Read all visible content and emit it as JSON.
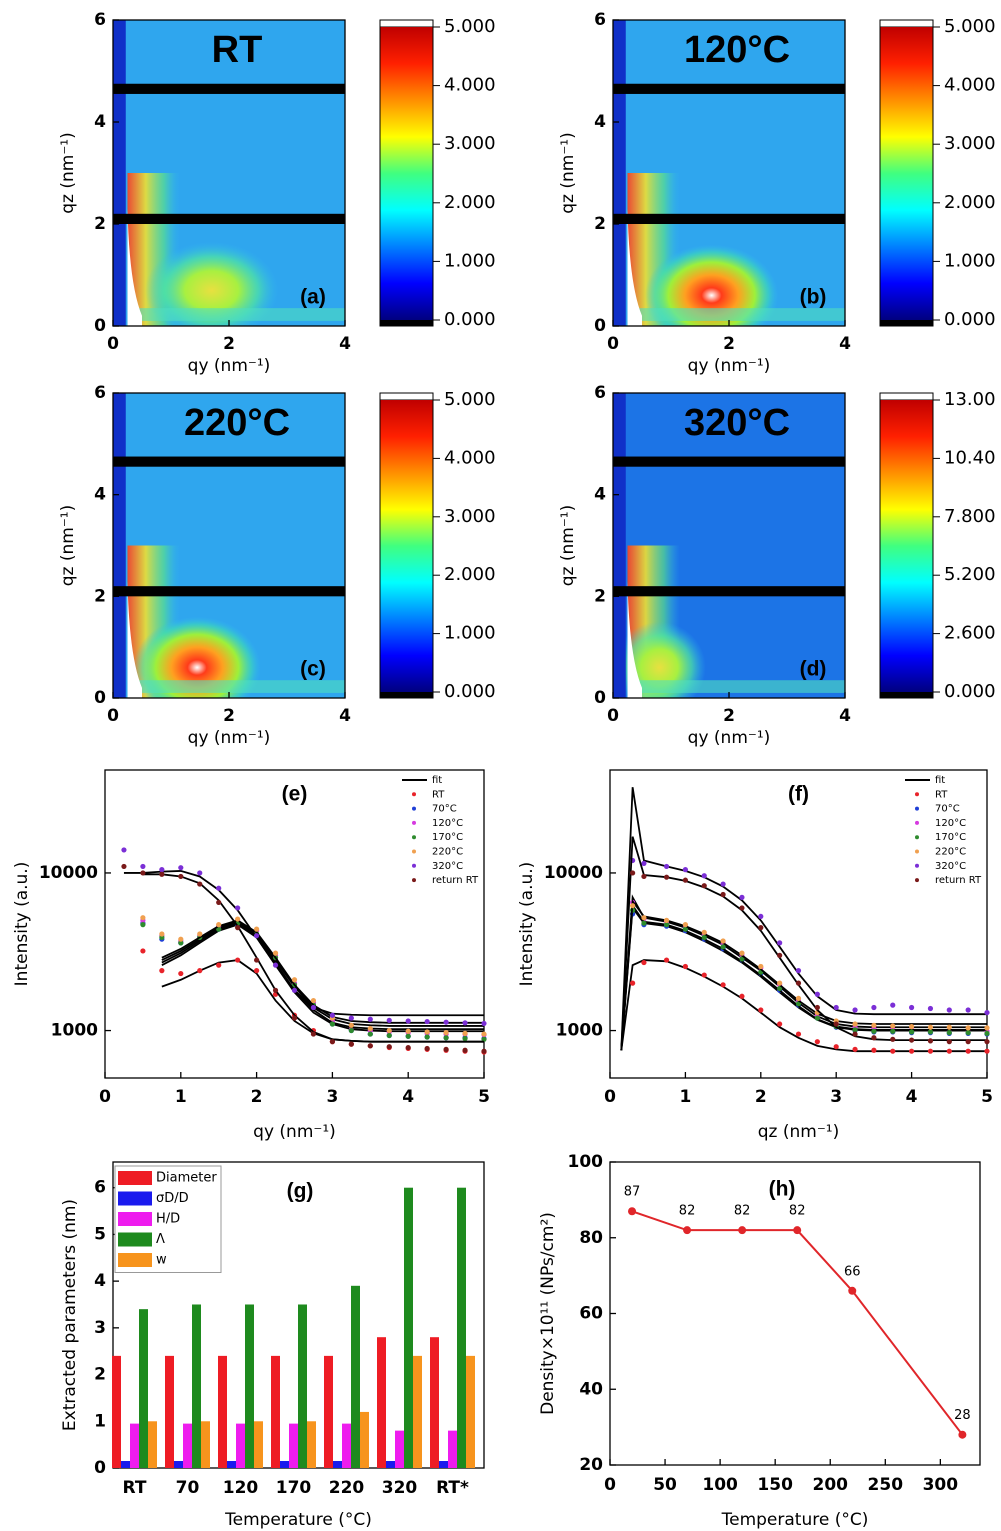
{
  "chart_data": [
    {
      "type": "heatmap",
      "title": "RT",
      "panel": "(a)",
      "x_label": "qy (nm⁻¹)",
      "y_label": "qz (nm⁻¹)",
      "xlim": [
        0,
        4
      ],
      "xticks": [
        0,
        2,
        4
      ],
      "ylim": [
        0,
        6
      ],
      "yticks": [
        0,
        2,
        4,
        6
      ],
      "clim": [
        0,
        5
      ],
      "cticks": [
        {
          "value": 0,
          "label": "0.000"
        },
        {
          "value": 1,
          "label": "1.000"
        },
        {
          "value": 2,
          "label": "2.000"
        },
        {
          "value": 3,
          "label": "3.000"
        },
        {
          "value": 4,
          "label": "4.000"
        },
        {
          "value": 5,
          "label": "5.000"
        }
      ]
    },
    {
      "type": "heatmap",
      "title": "120°C",
      "panel": "(b)",
      "x_label": "qy (nm⁻¹)",
      "y_label": "qz (nm⁻¹)",
      "xlim": [
        0,
        4
      ],
      "xticks": [
        0,
        2,
        4
      ],
      "ylim": [
        0,
        6
      ],
      "yticks": [
        0,
        2,
        4,
        6
      ],
      "clim": [
        0,
        5
      ],
      "cticks": [
        {
          "value": 0,
          "label": "0.000"
        },
        {
          "value": 1,
          "label": "1.000"
        },
        {
          "value": 2,
          "label": "2.000"
        },
        {
          "value": 3,
          "label": "3.000"
        },
        {
          "value": 4,
          "label": "4.000"
        },
        {
          "value": 5,
          "label": "5.000"
        }
      ]
    },
    {
      "type": "heatmap",
      "title": "220°C",
      "panel": "(c)",
      "x_label": "qy (nm⁻¹)",
      "y_label": "qz (nm⁻¹)",
      "xlim": [
        0,
        4
      ],
      "xticks": [
        0,
        2,
        4
      ],
      "ylim": [
        0,
        6
      ],
      "yticks": [
        0,
        2,
        4,
        6
      ],
      "clim": [
        0,
        5
      ],
      "cticks": [
        {
          "value": 0,
          "label": "0.000"
        },
        {
          "value": 1,
          "label": "1.000"
        },
        {
          "value": 2,
          "label": "2.000"
        },
        {
          "value": 3,
          "label": "3.000"
        },
        {
          "value": 4,
          "label": "4.000"
        },
        {
          "value": 5,
          "label": "5.000"
        }
      ]
    },
    {
      "type": "heatmap",
      "title": "320°C",
      "panel": "(d)",
      "x_label": "qy (nm⁻¹)",
      "y_label": "qz (nm⁻¹)",
      "xlim": [
        0,
        4
      ],
      "xticks": [
        0,
        2,
        4
      ],
      "ylim": [
        0,
        6
      ],
      "yticks": [
        0,
        2,
        4,
        6
      ],
      "clim": [
        0,
        13
      ],
      "cticks": [
        {
          "value": 0,
          "label": "0.000"
        },
        {
          "value": 2.6,
          "label": "2.600"
        },
        {
          "value": 5.2,
          "label": "5.200"
        },
        {
          "value": 7.8,
          "label": "7.800"
        },
        {
          "value": 10.4,
          "label": "10.40"
        },
        {
          "value": 13,
          "label": "13.00"
        }
      ]
    },
    {
      "type": "scatter",
      "panel": "(e)",
      "x_label": "qy (nm⁻¹)",
      "y_label": "Intensity (a.u.)",
      "log_y": true,
      "legend": "upper right",
      "xlim": [
        0,
        5
      ],
      "xticks": [
        0,
        1,
        2,
        3,
        4,
        5
      ],
      "ylim": [
        500,
        45000
      ],
      "yticks": [
        1000,
        10000
      ],
      "fit_name": "fit",
      "fit_color": "#000000",
      "x": [
        0.25,
        0.5,
        0.75,
        1,
        1.25,
        1.5,
        1.75,
        2,
        2.25,
        2.5,
        2.75,
        3,
        3.25,
        3.5,
        3.75,
        4,
        4.25,
        4.5,
        4.75,
        5
      ],
      "series": [
        {
          "name": "RT",
          "color": "#e8232a",
          "values": [
            null,
            3200,
            2400,
            2300,
            2400,
            2600,
            2800,
            2400,
            1700,
            1250,
            1000,
            850,
            820,
            800,
            780,
            770,
            760,
            750,
            740,
            730
          ],
          "fit": [
            null,
            null,
            1900,
            2100,
            2400,
            2700,
            2800,
            2300,
            1550,
            1150,
            960,
            880,
            860,
            850,
            850,
            850,
            850,
            850,
            850,
            850
          ]
        },
        {
          "name": "70°C",
          "color": "#1f3fd6",
          "values": [
            null,
            4800,
            3800,
            3600,
            3900,
            4400,
            4700,
            4000,
            2800,
            1900,
            1400,
            1100,
            1000,
            950,
            930,
            920,
            910,
            900,
            900,
            890
          ],
          "fit": [
            null,
            null,
            2600,
            3000,
            3600,
            4300,
            4700,
            3900,
            2600,
            1750,
            1300,
            1100,
            1020,
            1000,
            990,
            990,
            990,
            990,
            990,
            990
          ]
        },
        {
          "name": "120°C",
          "color": "#d63ae0",
          "values": [
            null,
            5000,
            4000,
            3700,
            4000,
            4600,
            5000,
            4300,
            3000,
            2000,
            1500,
            1150,
            1050,
            1000,
            980,
            970,
            960,
            950,
            950,
            940
          ],
          "fit": [
            null,
            null,
            2800,
            3200,
            3800,
            4500,
            4900,
            4100,
            2800,
            1900,
            1400,
            1180,
            1100,
            1080,
            1070,
            1070,
            1070,
            1070,
            1070,
            1070
          ]
        },
        {
          "name": "170°C",
          "color": "#2e8b2e",
          "values": [
            null,
            4700,
            3900,
            3600,
            3900,
            4400,
            4800,
            4100,
            2900,
            1950,
            1450,
            1100,
            1000,
            950,
            930,
            920,
            910,
            900,
            890,
            880
          ],
          "fit": [
            null,
            null,
            2700,
            3100,
            3700,
            4400,
            4800,
            4000,
            2700,
            1800,
            1350,
            1120,
            1050,
            1030,
            1020,
            1020,
            1020,
            1020,
            1020,
            1020
          ]
        },
        {
          "name": "220°C",
          "color": "#f0a050",
          "values": [
            null,
            5200,
            4100,
            3800,
            4100,
            4700,
            5100,
            4400,
            3100,
            2100,
            1550,
            1200,
            1080,
            1030,
            1000,
            990,
            980,
            970,
            960,
            950
          ],
          "fit": [
            null,
            null,
            2900,
            3300,
            3900,
            4600,
            5000,
            4200,
            2900,
            1950,
            1450,
            1220,
            1150,
            1130,
            1120,
            1120,
            1120,
            1120,
            1120,
            1120
          ]
        },
        {
          "name": "320°C",
          "color": "#7b2fd6",
          "values": [
            14000,
            11000,
            10500,
            10800,
            10000,
            8000,
            6000,
            4000,
            2600,
            1800,
            1400,
            1250,
            1200,
            1180,
            1160,
            1150,
            1140,
            1130,
            1120,
            1110
          ],
          "fit": [
            10000,
            10000,
            10200,
            10300,
            9500,
            7800,
            5800,
            3900,
            2600,
            1800,
            1400,
            1280,
            1260,
            1250,
            1250,
            1250,
            1250,
            1250,
            1250,
            1250
          ]
        },
        {
          "name": "return RT",
          "color": "#7a1a1a",
          "values": [
            11000,
            10000,
            9800,
            9500,
            8500,
            6500,
            4500,
            2800,
            1800,
            1200,
            950,
            850,
            820,
            800,
            790,
            780,
            770,
            760,
            750,
            740
          ],
          "fit": [
            null,
            9800,
            9800,
            9500,
            8600,
            6700,
            4600,
            2900,
            1800,
            1250,
            980,
            880,
            860,
            850,
            850,
            850,
            850,
            850,
            850,
            850
          ]
        }
      ]
    },
    {
      "type": "scatter",
      "panel": "(f)",
      "x_label": "qz (nm⁻¹)",
      "y_label": "Intensity (a.u.)",
      "log_y": true,
      "legend": "upper right",
      "xlim": [
        0,
        5
      ],
      "xticks": [
        0,
        1,
        2,
        3,
        4,
        5
      ],
      "ylim": [
        500,
        45000
      ],
      "yticks": [
        1000,
        10000
      ],
      "fit_name": "fit",
      "fit_color": "#000000",
      "x": [
        0.15,
        0.3,
        0.45,
        0.75,
        1,
        1.25,
        1.5,
        1.75,
        2,
        2.25,
        2.5,
        2.75,
        3,
        3.25,
        3.5,
        3.75,
        4,
        4.25,
        4.5,
        4.75,
        5
      ],
      "series": [
        {
          "name": "RT",
          "color": "#e8232a",
          "values": [
            null,
            2000,
            2700,
            2800,
            2550,
            2250,
            1950,
            1650,
            1350,
            1100,
            950,
            850,
            790,
            760,
            750,
            740,
            740,
            740,
            740,
            740,
            740
          ],
          "fit": [
            750,
            2600,
            2800,
            2750,
            2500,
            2200,
            1900,
            1600,
            1300,
            1050,
            900,
            800,
            760,
            740,
            740,
            740,
            740,
            740,
            740,
            740,
            740
          ]
        },
        {
          "name": "70°C",
          "color": "#1f3fd6",
          "values": [
            null,
            5500,
            4700,
            4600,
            4300,
            3800,
            3300,
            2800,
            2300,
            1800,
            1450,
            1200,
            1050,
            1000,
            980,
            980,
            970,
            970,
            960,
            960,
            950
          ],
          "fit": [
            750,
            6000,
            4800,
            4600,
            4200,
            3700,
            3200,
            2700,
            2200,
            1750,
            1400,
            1170,
            1050,
            1010,
            1000,
            1000,
            1000,
            1000,
            1000,
            1000,
            1000
          ]
        },
        {
          "name": "120°C",
          "color": "#d63ae0",
          "values": [
            null,
            6500,
            5100,
            4900,
            4600,
            4100,
            3600,
            3000,
            2500,
            1950,
            1550,
            1250,
            1100,
            1050,
            1030,
            1020,
            1010,
            1000,
            1000,
            1000,
            990
          ],
          "fit": [
            750,
            7000,
            5200,
            4900,
            4500,
            4000,
            3500,
            2900,
            2400,
            1900,
            1500,
            1230,
            1100,
            1060,
            1050,
            1050,
            1050,
            1050,
            1050,
            1050,
            1050
          ]
        },
        {
          "name": "170°C",
          "color": "#2e8b2e",
          "values": [
            null,
            5800,
            4800,
            4700,
            4400,
            3900,
            3400,
            2850,
            2350,
            1850,
            1480,
            1200,
            1060,
            1010,
            990,
            990,
            980,
            980,
            970,
            970,
            960
          ],
          "fit": [
            750,
            6200,
            4900,
            4700,
            4300,
            3800,
            3300,
            2750,
            2250,
            1800,
            1430,
            1180,
            1060,
            1020,
            1010,
            1010,
            1010,
            1010,
            1010,
            1010,
            1010
          ]
        },
        {
          "name": "220°C",
          "color": "#f0a050",
          "values": [
            null,
            6200,
            5200,
            5000,
            4700,
            4200,
            3700,
            3100,
            2550,
            2000,
            1600,
            1300,
            1150,
            1100,
            1080,
            1070,
            1060,
            1050,
            1050,
            1040,
            1040
          ],
          "fit": [
            750,
            6600,
            5300,
            5000,
            4600,
            4100,
            3600,
            3000,
            2450,
            1950,
            1550,
            1280,
            1150,
            1110,
            1100,
            1100,
            1100,
            1100,
            1100,
            1100,
            1100
          ]
        },
        {
          "name": "320°C",
          "color": "#7b2fd6",
          "values": [
            null,
            12000,
            11500,
            11000,
            10500,
            9600,
            8500,
            7000,
            5300,
            3600,
            2400,
            1700,
            1400,
            1350,
            1400,
            1450,
            1400,
            1380,
            1350,
            1350,
            1300
          ],
          "fit": [
            750,
            35000,
            12000,
            11000,
            10300,
            9400,
            8200,
            6700,
            5000,
            3400,
            2300,
            1650,
            1350,
            1280,
            1270,
            1270,
            1270,
            1270,
            1270,
            1270,
            1270
          ]
        },
        {
          "name": "return RT",
          "color": "#7a1a1a",
          "values": [
            null,
            10000,
            9500,
            9400,
            9000,
            8300,
            7300,
            6000,
            4500,
            3000,
            2000,
            1400,
            1100,
            950,
            900,
            880,
            870,
            860,
            850,
            850,
            850
          ],
          "fit": [
            750,
            17000,
            9700,
            9400,
            8900,
            8100,
            7100,
            5800,
            4300,
            2900,
            1950,
            1350,
            1050,
            920,
            880,
            870,
            870,
            870,
            870,
            870,
            870
          ]
        }
      ]
    },
    {
      "type": "bar",
      "panel": "(g)",
      "x_label": "Temperature (°C)",
      "y_label": "Extracted parameters (nm)",
      "legend": "upper left",
      "categories": [
        "RT",
        "70",
        "120",
        "170",
        "220",
        "320",
        "RT*"
      ],
      "ylim": [
        0,
        6.55
      ],
      "yticks": [
        0,
        1,
        2,
        3,
        4,
        5,
        6
      ],
      "series": [
        {
          "name": "Diameter",
          "color": "#ee1c24",
          "values": [
            2.4,
            2.4,
            2.4,
            2.4,
            2.4,
            2.8,
            2.8
          ]
        },
        {
          "name": "σD/D",
          "color": "#1a1aee",
          "values": [
            0.15,
            0.15,
            0.15,
            0.15,
            0.15,
            0.15,
            0.15
          ]
        },
        {
          "name": "H/D",
          "color": "#ee1cee",
          "values": [
            0.95,
            0.95,
            0.95,
            0.95,
            0.95,
            0.8,
            0.8
          ]
        },
        {
          "name": "Λ",
          "color": "#1e8a1e",
          "values": [
            3.4,
            3.5,
            3.5,
            3.5,
            3.9,
            6,
            6
          ]
        },
        {
          "name": "w",
          "color": "#f7941d",
          "values": [
            1,
            1,
            1,
            1,
            1.2,
            2.4,
            2.4
          ]
        }
      ]
    },
    {
      "type": "line",
      "panel": "(h)",
      "x_label": "Temperature (°C)",
      "y_label": "Density×10¹¹ (NPs/cm²)",
      "x": [
        20,
        70,
        120,
        170,
        220,
        320
      ],
      "values": [
        87,
        82,
        82,
        82,
        66,
        28
      ],
      "color": "#e0262a",
      "data_labels": true,
      "xlim": [
        0,
        336
      ],
      "xticks": [
        0,
        50,
        100,
        150,
        200,
        250,
        300
      ],
      "ylim": [
        20,
        100
      ],
      "yticks": [
        20,
        40,
        60,
        80,
        100
      ]
    }
  ]
}
